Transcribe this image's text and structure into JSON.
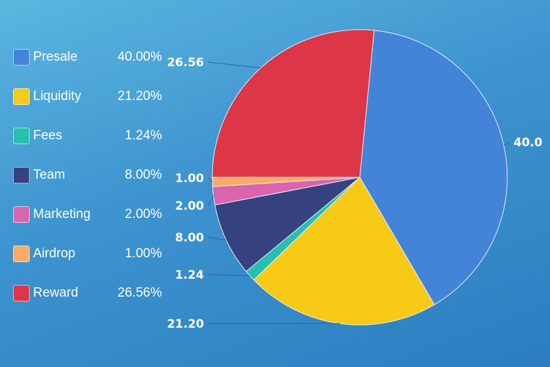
{
  "chart_data": {
    "type": "pie",
    "title": "",
    "categories": [
      "Presale",
      "Liquidity",
      "Fees",
      "Team",
      "Marketing",
      "Airdrop",
      "Reward"
    ],
    "values": [
      40.0,
      21.2,
      1.24,
      8.0,
      2.0,
      1.0,
      26.56
    ],
    "data_labels": [
      "40.0",
      "21.20",
      "1.24",
      "8.00",
      "2.00",
      "1.00",
      "26.56"
    ],
    "legend_percents": [
      "40.00%",
      "21.20%",
      "1.24%",
      "8.00%",
      "2.00%",
      "1.00%",
      "26.56%"
    ],
    "colors": [
      "#4384d9",
      "#f7ca18",
      "#26bfb1",
      "#35427f",
      "#da64ae",
      "#fcab67",
      "#dc3647"
    ],
    "legend_position": "left"
  }
}
